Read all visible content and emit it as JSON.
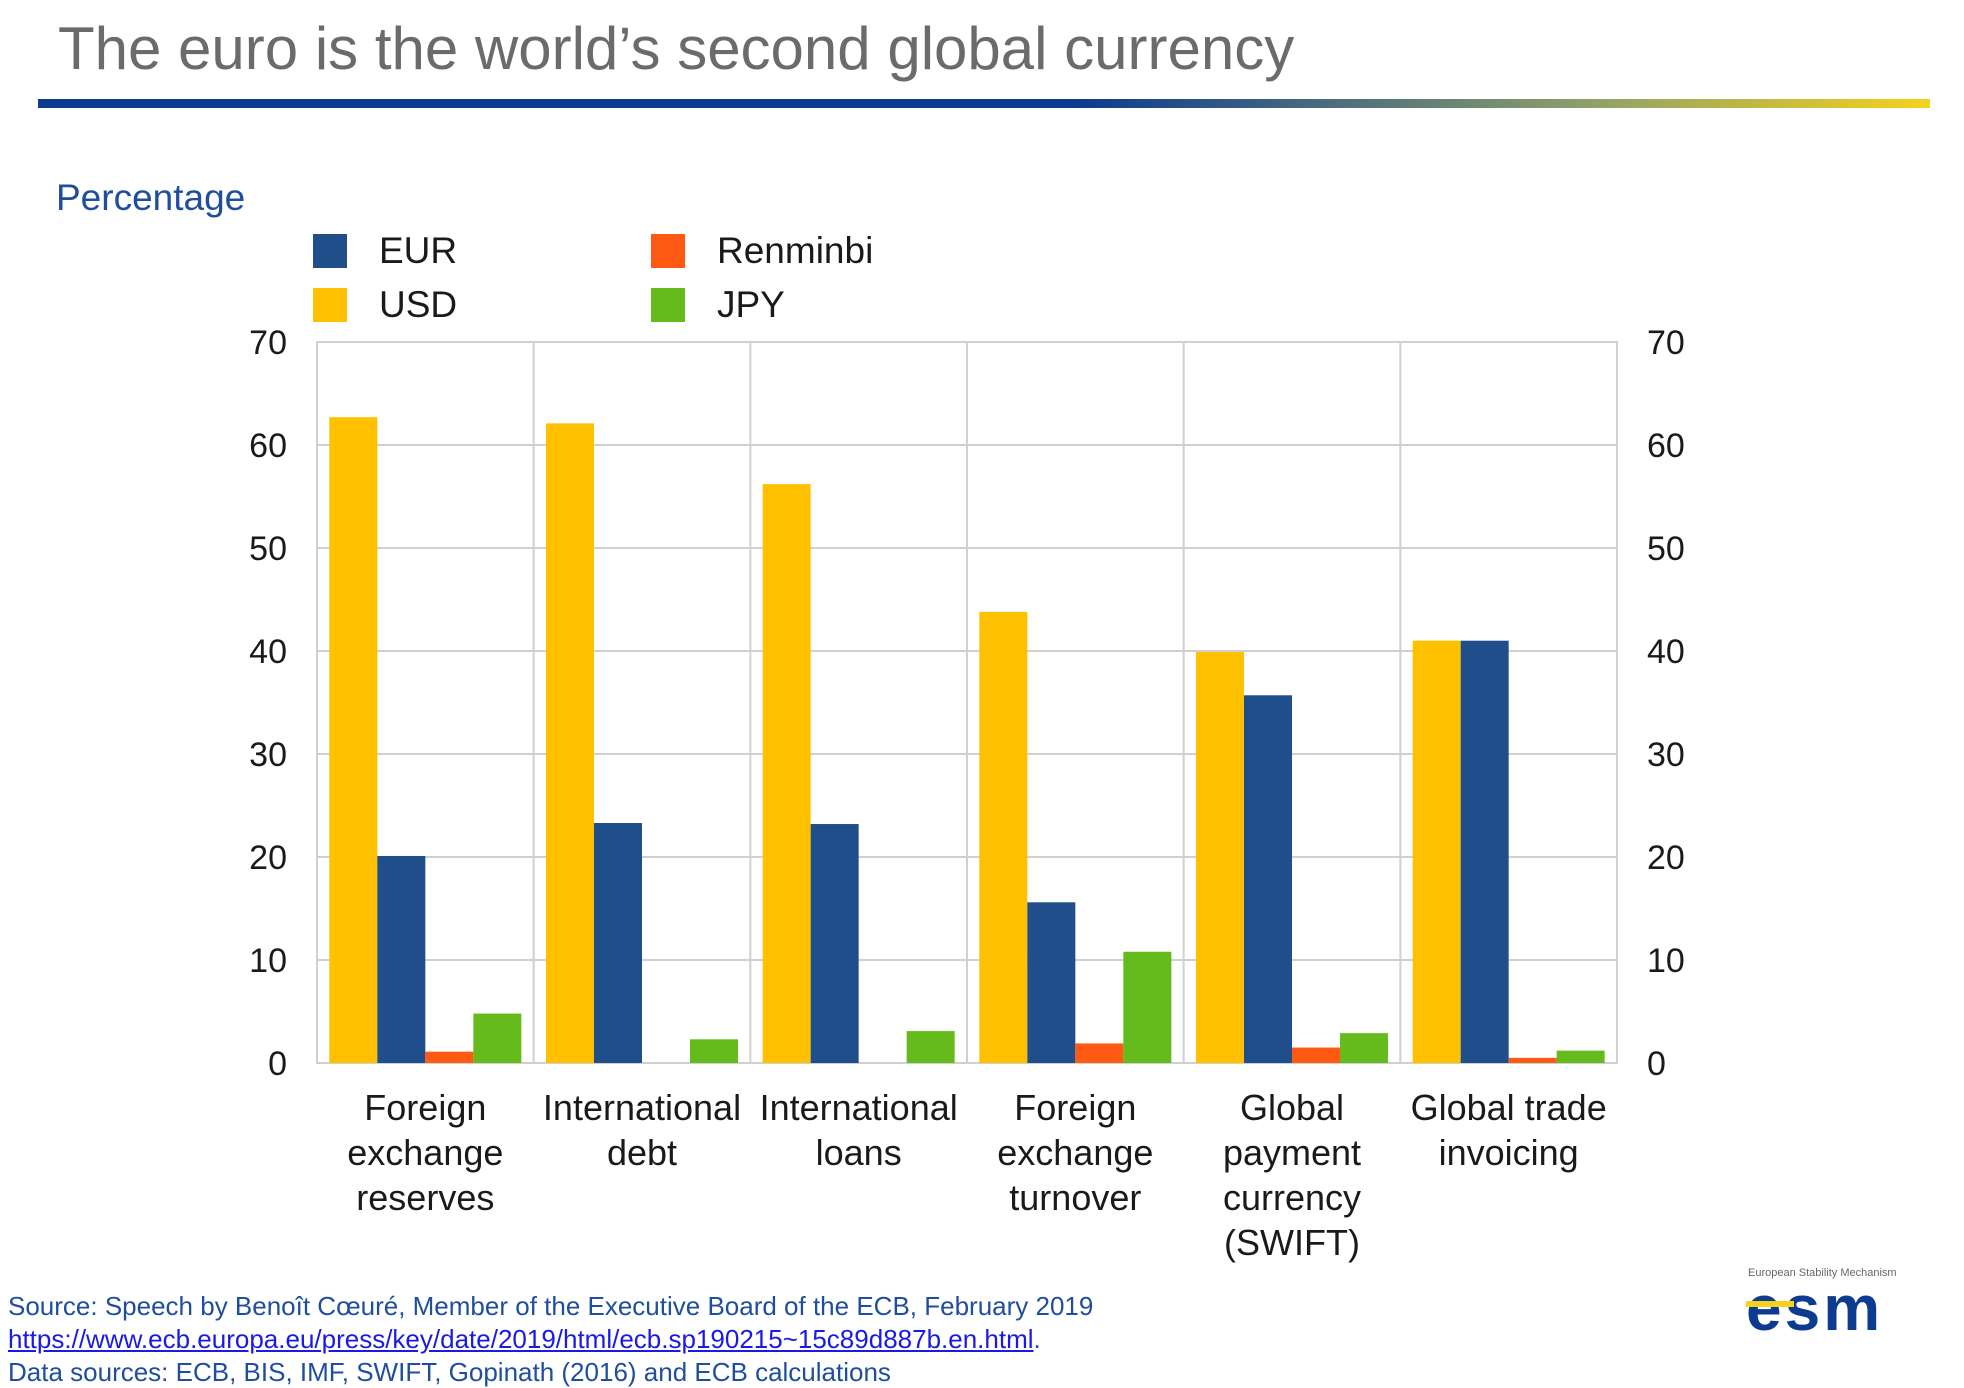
{
  "title": "The euro is the world’s second global currency",
  "unit_label": "Percentage",
  "legend": [
    {
      "key": "EUR",
      "label": "EUR",
      "color": "#1f4e8a"
    },
    {
      "key": "Renminbi",
      "label": "Renminbi",
      "color": "#ff5a14"
    },
    {
      "key": "USD",
      "label": "USD",
      "color": "#ffc000"
    },
    {
      "key": "JPY",
      "label": "JPY",
      "color": "#66bb1c"
    }
  ],
  "chart_data": {
    "type": "bar",
    "title": "",
    "xlabel": "",
    "ylabel": "Percentage",
    "ylim": [
      0,
      70
    ],
    "yticks": [
      0,
      10,
      20,
      30,
      40,
      50,
      60,
      70
    ],
    "grid": true,
    "legend_position": "top-left",
    "dual_y_axis": true,
    "categories": [
      [
        "Foreign",
        "exchange",
        "reserves"
      ],
      [
        "International",
        "debt"
      ],
      [
        "International",
        "loans"
      ],
      [
        "Foreign",
        "exchange",
        "turnover"
      ],
      [
        "Global",
        "payment",
        "currency",
        "(SWIFT)"
      ],
      [
        "Global trade",
        "invoicing"
      ]
    ],
    "series": [
      {
        "name": "USD",
        "color": "#ffc000",
        "values": [
          62.7,
          62.1,
          56.2,
          43.8,
          39.9,
          41.0
        ]
      },
      {
        "name": "EUR",
        "color": "#1f4e8a",
        "values": [
          20.1,
          23.3,
          23.2,
          15.6,
          35.7,
          41.0
        ]
      },
      {
        "name": "Renminbi",
        "color": "#ff5a14",
        "values": [
          1.1,
          0.0,
          0.0,
          1.9,
          1.5,
          0.5
        ]
      },
      {
        "name": "JPY",
        "color": "#66bb1c",
        "values": [
          4.8,
          2.3,
          3.1,
          10.8,
          2.9,
          1.2
        ]
      }
    ]
  },
  "footer": {
    "source_line": "Source: Speech by Benoît Cœuré, Member of the Executive Board of the ECB, February 2019",
    "url": "https://www.ecb.europa.eu/press/key/date/2019/html/ecb.sp190215~15c89d887b.en.html",
    "url_suffix": ".",
    "data_sources": "Data sources: ECB, BIS, IMF, SWIFT, Gopinath (2016) and ECB calculations"
  },
  "logo": {
    "caption": "European Stability Mechanism",
    "text": "esm",
    "icon": "esm-logo-icon"
  }
}
